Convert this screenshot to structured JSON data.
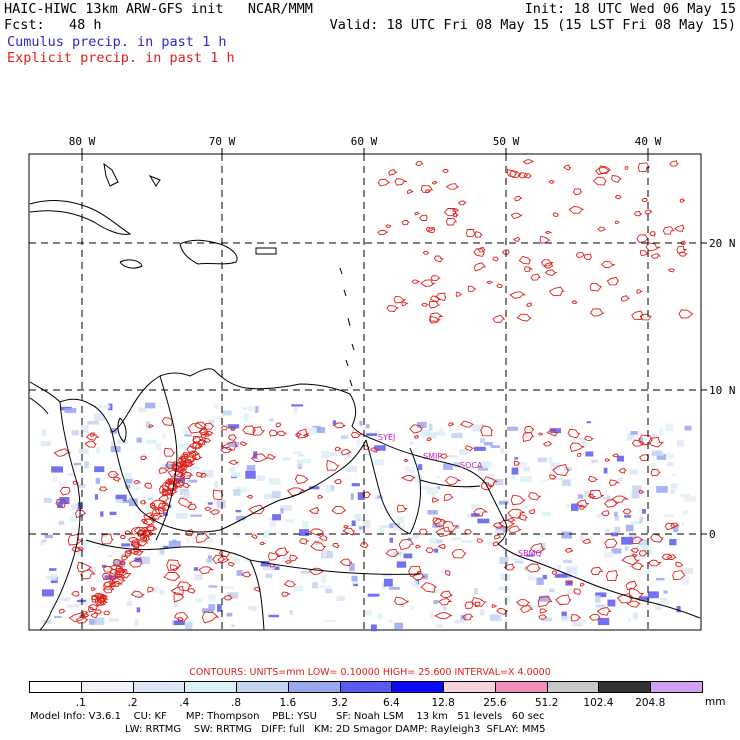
{
  "header": {
    "title_left": "HAIC-HIWC 13km ARW-GFS init   NCAR/MMM",
    "fcst_label": "Fcst:   48 h",
    "init": "Init: 18 UTC Wed 06 May 15",
    "valid": "Valid: 18 UTC Fri 08 May 15 (15 LST Fri 08 May 15)",
    "cumulus_legend": "Cumulus precip. in past 1 h",
    "explicit_legend": "Explicit precip. in past 1 h"
  },
  "map": {
    "lon_labels": [
      "80 W",
      "70 W",
      "60 W",
      "50 W",
      "40 W"
    ],
    "lat_labels": [
      "20 N",
      "10 N",
      "0"
    ],
    "station_labels": [
      "SYEJ",
      "SMJP",
      "SOCA",
      "SBMQ"
    ],
    "colors": {
      "coast": "#000000",
      "grid": "#000000",
      "explicit": "#e0201a",
      "cumulus": "#3a3acc",
      "station": "#c020c0"
    }
  },
  "contours": {
    "text": "CONTOURS:  UNITS=mm  LOW= 0.10000      HIGH=  25.600      INTERVAL=X  4.0000"
  },
  "colorbar": {
    "unit": "mm",
    "labels": [
      ".1",
      ".2",
      ".4",
      ".8",
      "1.6",
      "3.2",
      "6.4",
      "12.8",
      "25.6",
      "51.2",
      "102.4",
      "204.8"
    ],
    "colors": [
      "#ffffff",
      "#f0f4fa",
      "#dce6f4",
      "#d9f2f4",
      "#c2d4f0",
      "#9aa8ee",
      "#5a5af0",
      "#0a0af5",
      "#f7d2dc",
      "#f090b8",
      "#c8c8c8",
      "#323232",
      "#d2a0f0"
    ]
  },
  "footer": {
    "line1": "Model Info: V3.6.1    CU: KF      MP: Thompson    PBL: YSU      SF: Noah LSM    13 km   51 levels   60 sec",
    "line2": "LW: RRTMG    SW: RRTMG   DIFF: full   KM: 2D Smagor DAMP: Rayleigh3  SFLAY: MM5"
  }
}
